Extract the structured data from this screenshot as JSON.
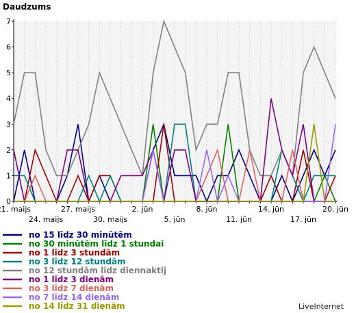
{
  "chart_data": {
    "type": "line",
    "title": "Daudzums",
    "ylim": [
      0,
      7
    ],
    "yticks": [
      "0",
      "1",
      "2",
      "3",
      "4",
      "5",
      "6",
      "7"
    ],
    "x": [
      "21. maijs",
      "22",
      "23",
      "24. maijs",
      "25",
      "26",
      "27. maijs",
      "28",
      "29",
      "30. maijs",
      "31",
      "1",
      "2. jūn",
      "3",
      "4",
      "5. jūn",
      "6",
      "7",
      "8. jūn",
      "9",
      "10",
      "11. jūn",
      "12",
      "13",
      "14. jūn",
      "15",
      "16",
      "17. jūn",
      "18",
      "19",
      "20. jūn"
    ],
    "xticks_top": [
      {
        "i": 0,
        "label": "21. maijs"
      },
      {
        "i": 6,
        "label": "27. maijs"
      },
      {
        "i": 12,
        "label": "2. jūn"
      },
      {
        "i": 18,
        "label": "8. jūn"
      },
      {
        "i": 24,
        "label": "14. jūn"
      },
      {
        "i": 30,
        "label": "20. jūn"
      }
    ],
    "xticks_bottom": [
      {
        "i": 3,
        "label": "24. maijs"
      },
      {
        "i": 9,
        "label": "30. maijs"
      },
      {
        "i": 15,
        "label": "5. jūn"
      },
      {
        "i": 21,
        "label": "11. jūn"
      },
      {
        "i": 27,
        "label": "17. jūn"
      }
    ],
    "grid": "vertical-dotted",
    "legend_position": "bottom-left",
    "series": [
      {
        "name": "no 15 līdz 30 minūtēm",
        "color": "#000080",
        "values": [
          0,
          2,
          0,
          0,
          0,
          1,
          3,
          0,
          1,
          0,
          0,
          0,
          0,
          2,
          3,
          1,
          1,
          1,
          0,
          1,
          1,
          2,
          1,
          0,
          0,
          1,
          0,
          1,
          2,
          1,
          2
        ]
      },
      {
        "name": "no 30 minūtēm līdz 1 stundai",
        "color": "#008000",
        "values": [
          0,
          0,
          0,
          0,
          0,
          0,
          0,
          0,
          0,
          0,
          0,
          0,
          0,
          3,
          0,
          0,
          0,
          0,
          0,
          0,
          3,
          0,
          0,
          0,
          0,
          0,
          0,
          0,
          0,
          1,
          0
        ]
      },
      {
        "name": "no 1 līdz 3 stundām",
        "color": "#a00000",
        "values": [
          0,
          0,
          2,
          1,
          0,
          0,
          1,
          0,
          1,
          1,
          0,
          0,
          0,
          0,
          3,
          0,
          0,
          0,
          0,
          0,
          0,
          0,
          0,
          0,
          1,
          0,
          0,
          2,
          0,
          0,
          1
        ]
      },
      {
        "name": "no 3 līdz 12 stundām",
        "color": "#008080",
        "values": [
          1,
          1,
          0,
          0,
          0,
          0,
          0,
          1,
          0,
          1,
          0,
          0,
          0,
          0,
          0,
          3,
          3,
          0,
          0,
          0,
          0,
          0,
          0,
          0,
          0,
          2,
          1,
          0,
          1,
          1,
          1
        ]
      },
      {
        "name": "no 12 stundām līdz diennaktij",
        "color": "#808080",
        "values": [
          3,
          5,
          5,
          2,
          1,
          1,
          2,
          3,
          5,
          4,
          3,
          2,
          1,
          5,
          7,
          6,
          5,
          2,
          3,
          3,
          5,
          5,
          2,
          1,
          1,
          2,
          1,
          5,
          6,
          5,
          4
        ]
      },
      {
        "name": "no 1 līdz 3 dienām",
        "color": "#800080",
        "values": [
          2,
          0,
          0,
          0,
          0,
          2,
          2,
          0,
          0,
          0,
          1,
          1,
          1,
          2,
          0,
          2,
          2,
          0,
          0,
          0,
          0,
          0,
          0,
          0,
          4,
          2,
          1,
          3,
          0,
          0,
          0
        ]
      },
      {
        "name": "no 3 līdz 7 dienām",
        "color": "#e06060",
        "values": [
          0,
          0,
          1,
          0,
          0,
          0,
          0,
          0,
          0,
          0,
          0,
          0,
          0,
          0,
          0,
          0,
          0,
          0,
          1,
          2,
          0,
          0,
          2,
          0,
          0,
          0,
          2,
          0,
          0,
          0,
          0
        ]
      },
      {
        "name": "no 7 līdz 14 dienām",
        "color": "#9966ee",
        "values": [
          0,
          0,
          0,
          0,
          0,
          0,
          0,
          0,
          0,
          0,
          0,
          0,
          0,
          2,
          0,
          0,
          0,
          0,
          2,
          0,
          1,
          0,
          0,
          0,
          0,
          0,
          0,
          0,
          0,
          0,
          3
        ]
      },
      {
        "name": "no 14 līdz 31 dienām",
        "color": "#999900",
        "values": [
          0,
          0,
          0,
          0,
          0,
          0,
          0,
          0,
          0,
          0,
          0,
          0,
          0,
          0,
          0,
          0,
          0,
          0,
          0,
          0,
          0,
          0,
          0,
          0,
          0,
          0,
          0,
          0,
          3,
          0,
          0
        ]
      }
    ]
  },
  "branding": "LiveInternet"
}
